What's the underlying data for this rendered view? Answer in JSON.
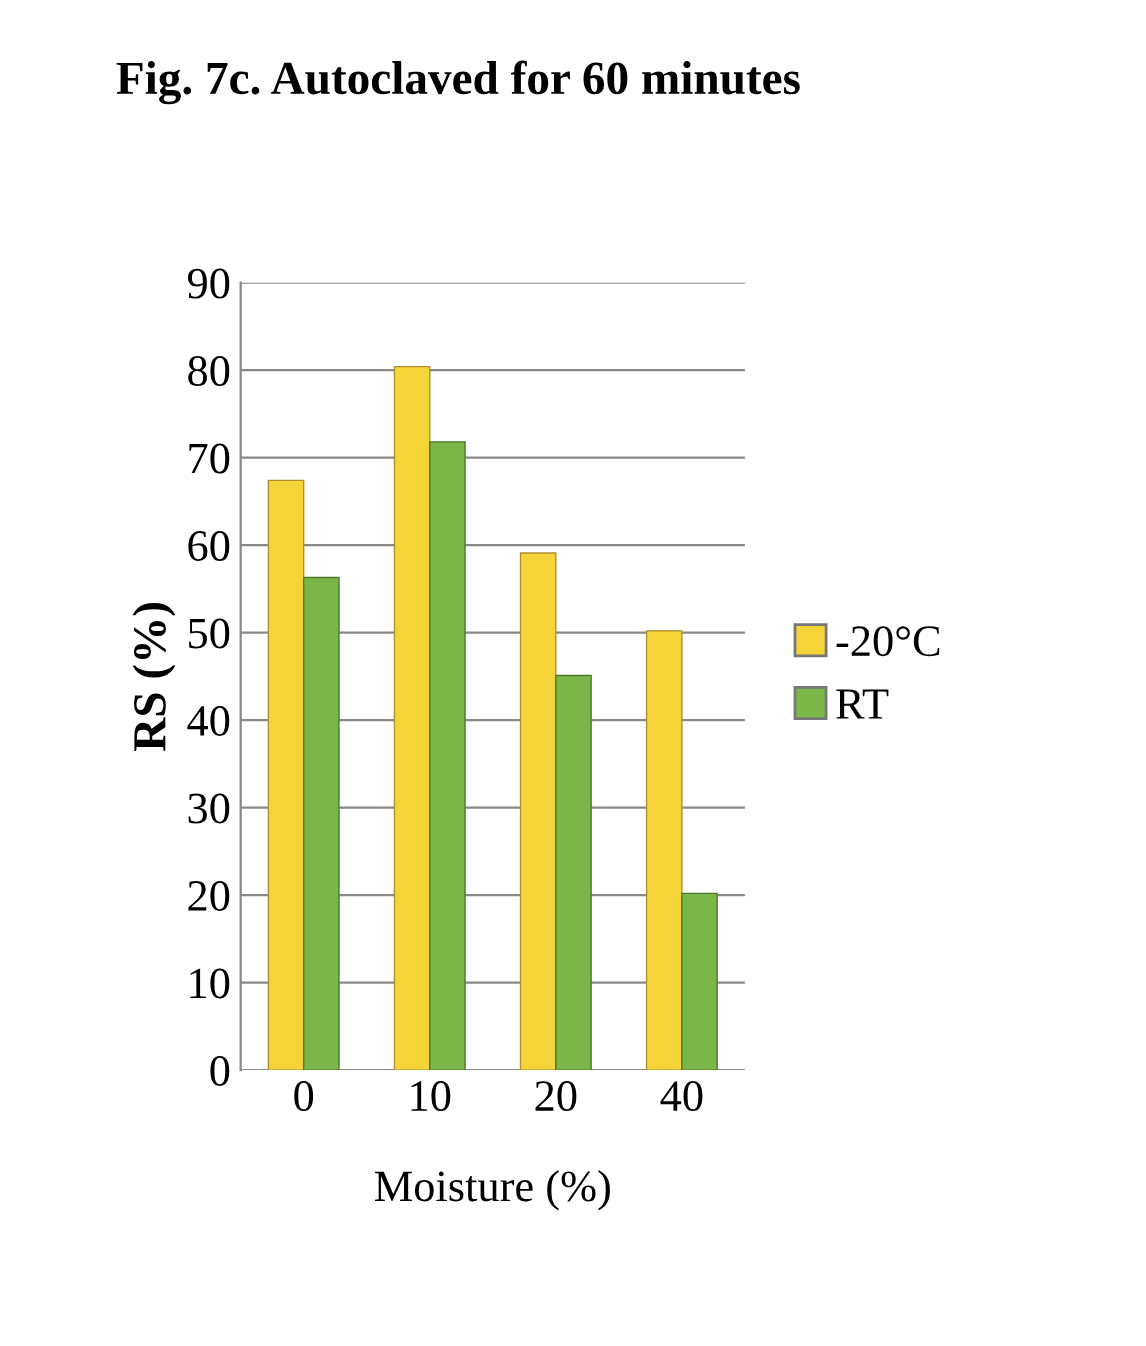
{
  "chart_data": {
    "type": "bar",
    "title": "Fig. 7c. Autoclaved for 60 minutes",
    "xlabel": "Moisture (%)",
    "ylabel": "RS (%)",
    "categories": [
      "0",
      "10",
      "20",
      "40"
    ],
    "series": [
      {
        "name": "-20°C",
        "color": "#f5d43a",
        "values": [
          67.4,
          80.4,
          59.1,
          50.2
        ]
      },
      {
        "name": "RT",
        "color": "#7ab648",
        "values": [
          56.3,
          71.8,
          45.1,
          20.2
        ]
      }
    ],
    "ylim": [
      0,
      90
    ],
    "yticks": [
      0,
      10,
      20,
      30,
      40,
      50,
      60,
      70,
      80,
      90
    ],
    "grid": "y",
    "legend": "right"
  }
}
